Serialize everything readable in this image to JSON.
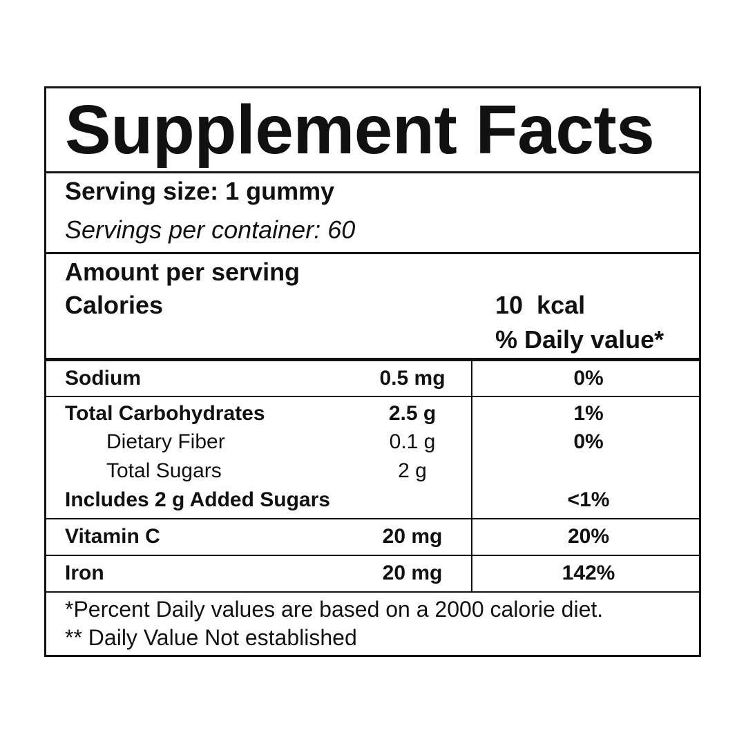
{
  "title": "Supplement Facts",
  "serving": {
    "size": "Serving size: 1 gummy",
    "per_container": "Servings per container: 60"
  },
  "amount": {
    "heading": "Amount per serving",
    "calories_label": "Calories",
    "calories_value": "10  kcal",
    "dv_heading": "% Daily value*"
  },
  "nutrients": [
    {
      "name": "Sodium",
      "amount": "0.5 mg",
      "dv": "0%"
    },
    {
      "name": "Total Carbohydrates",
      "amount": "2.5 g",
      "dv": "1%"
    },
    {
      "name": "Dietary Fiber",
      "amount": "0.1 g",
      "dv": "0%"
    },
    {
      "name": "Total Sugars",
      "amount": "2 g",
      "dv": ""
    },
    {
      "name": "Includes 2 g Added Sugars",
      "amount": "",
      "dv": "<1%"
    },
    {
      "name": "Vitamin C",
      "amount": "20 mg",
      "dv": "20%"
    },
    {
      "name": "Iron",
      "amount": "20 mg",
      "dv": "142%"
    }
  ],
  "footnotes": [
    "*Percent Daily values are based on a 2000 calorie diet.",
    "** Daily Value Not established"
  ]
}
